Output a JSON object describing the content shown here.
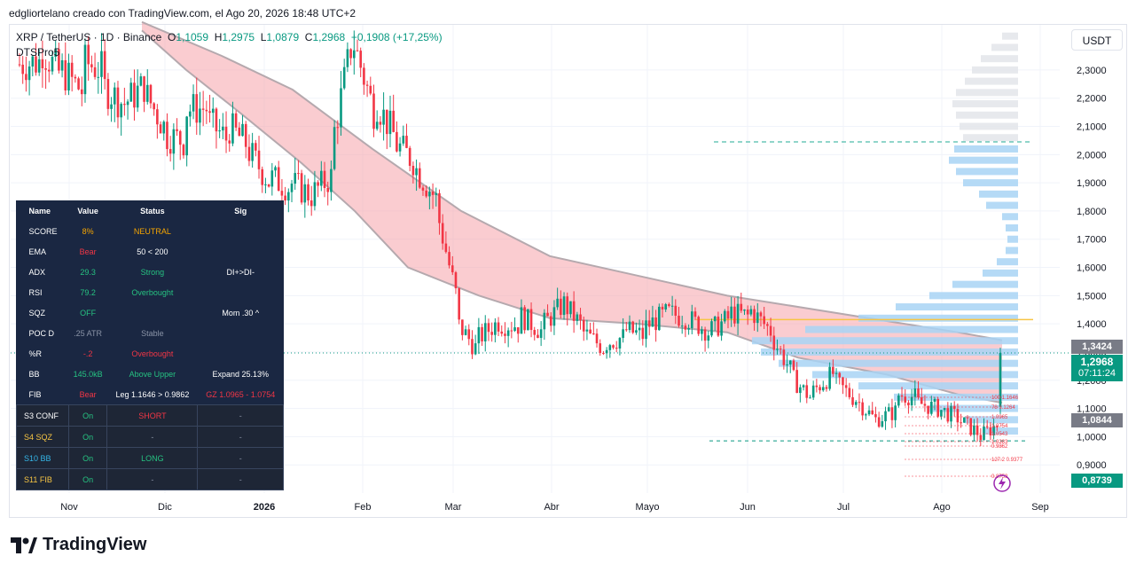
{
  "header": {
    "creator_line": "edgliortelano creado con TradingView.com, el Ago 20, 2026 18:48 UTC+2"
  },
  "symbol": {
    "name": "XRP / TetherUS · 1D · Binance",
    "o_label": "O",
    "o": "1,1059",
    "h_label": "H",
    "h": "1,2975",
    "l_label": "L",
    "l": "1,0879",
    "c_label": "C",
    "c": "1,2968",
    "change": "+0,1908 (+17,25%)",
    "indicator": "DTSPro5"
  },
  "currency_button": "USDT",
  "price_tags": {
    "upper_line": "1,3424",
    "last_price": "1,2968",
    "countdown": "07:11:24",
    "mid_line": "1,0844",
    "low_line": "0,8739"
  },
  "colors": {
    "up": "#089981",
    "down": "#f23645",
    "band_fill": "#f5a3aa",
    "band_edge": "#b5a9ae",
    "vp_blue": "#a8d4f5",
    "vp_grey": "#e3e5ea",
    "poc_line": "#f7c544",
    "table_bg": "#1a2742"
  },
  "chart_data": {
    "type": "candlestick",
    "ylim": [
      0.8,
      2.46
    ],
    "y_ticks": [
      "2,3000",
      "2,2000",
      "2,1000",
      "2,0000",
      "1,9000",
      "1,8000",
      "1,7000",
      "1,6000",
      "1,5000",
      "1,4000",
      "1,3000",
      "1,2000",
      "1,1000",
      "1,0000",
      "0,9000"
    ],
    "x_ticks": [
      "Nov",
      "Dic",
      "2026",
      "Feb",
      "Mar",
      "Abr",
      "Mayo",
      "Jun",
      "Jul",
      "Ago",
      "Sep"
    ],
    "close_path": [
      [
        2.32,
        2.28
      ],
      [
        2.38,
        2.26
      ],
      [
        2.3,
        2.12
      ],
      [
        2.33,
        2.36
      ],
      [
        2.24,
        2.18
      ],
      [
        2.18,
        2.27
      ],
      [
        2.22,
        2.11
      ],
      [
        2.07,
        1.93
      ],
      [
        2.16,
        2.21
      ],
      [
        2.12,
        2.0
      ],
      [
        2.1,
        2.05
      ],
      [
        2.01,
        1.88
      ],
      [
        1.92,
        1.86
      ],
      [
        1.9,
        1.85
      ],
      [
        1.86,
        1.8
      ],
      [
        2.05,
        2.45
      ],
      [
        2.4,
        2.1
      ],
      [
        2.2,
        2.08
      ],
      [
        2.04,
        1.99
      ],
      [
        1.95,
        1.88
      ],
      [
        1.8,
        1.55
      ],
      [
        1.4,
        1.25
      ],
      [
        1.35,
        1.42
      ],
      [
        1.4,
        1.36
      ],
      [
        1.43,
        1.36
      ],
      [
        1.39,
        1.45
      ],
      [
        1.48,
        1.4
      ],
      [
        1.37,
        1.3
      ],
      [
        1.33,
        1.33
      ],
      [
        1.38,
        1.32
      ],
      [
        1.39,
        1.43
      ],
      [
        1.44,
        1.42
      ],
      [
        1.42,
        1.38
      ],
      [
        1.37,
        1.4
      ],
      [
        1.44,
        1.4
      ],
      [
        1.45,
        1.39
      ],
      [
        1.36,
        1.25
      ],
      [
        1.21,
        1.1
      ],
      [
        1.16,
        1.25
      ],
      [
        1.2,
        1.13
      ],
      [
        1.14,
        1.06
      ],
      [
        1.06,
        1.03
      ],
      [
        1.15,
        1.16
      ],
      [
        1.12,
        1.1
      ],
      [
        1.1,
        1.07
      ],
      [
        1.06,
        1.02
      ],
      [
        1.0,
        0.99
      ],
      [
        1.11,
        1.3
      ]
    ],
    "indicator_band": "descending moving-average cloud",
    "fib_levels": [
      {
        "label": "100",
        "value": "1.1646"
      },
      {
        "label": "78",
        "value": "1.1264"
      },
      {
        "label": "",
        "value": "1.0965"
      },
      {
        "label": "",
        "value": "1.0754"
      },
      {
        "label": "",
        "value": "1.0543"
      },
      {
        "label": "",
        "value": "1.0283"
      },
      {
        "label": "",
        "value": "0.9862"
      },
      {
        "label": "127.2",
        "value": "0.9377"
      },
      {
        "label": "",
        "value": "0.8759"
      }
    ]
  },
  "table": {
    "headers": [
      "Name",
      "Value",
      "Status",
      "Sig"
    ],
    "rows": [
      {
        "name": "SCORE",
        "value": "8%",
        "value_color": "#f7a600",
        "status": "NEUTRAL",
        "status_color": "#f7a600",
        "extra": ""
      },
      {
        "name": "EMA",
        "value": "Bear",
        "value_color": "#f23645",
        "status": "50 < 200",
        "status_color": "#ffffff",
        "extra": ""
      },
      {
        "name": "ADX",
        "value": "29.3",
        "value_color": "#26c281",
        "status": "Strong",
        "status_color": "#26c281",
        "extra": "DI+>DI-"
      },
      {
        "name": "RSI",
        "value": "79.2",
        "value_color": "#26c281",
        "status": "Overbought",
        "status_color": "#26c281",
        "extra": ""
      },
      {
        "name": "SQZ",
        "value": "OFF",
        "value_color": "#26c281",
        "status": "",
        "status_color": "#ffffff",
        "extra": "Mom .30 ^"
      },
      {
        "name": "POC D",
        "value": ".25 ATR",
        "value_color": "#8a93a6",
        "status": "Stable",
        "status_color": "#8a93a6",
        "extra": ""
      },
      {
        "name": "%R",
        "value": "-.2",
        "value_color": "#f23645",
        "status": "Overbought",
        "status_color": "#f23645",
        "extra": ""
      },
      {
        "name": "BB",
        "value": "145.0kB",
        "value_color": "#26c281",
        "status": "Above Upper",
        "status_color": "#26c281",
        "extra": "Expand 25.13%"
      },
      {
        "name": "FIB",
        "value": "Bear",
        "value_color": "#f23645",
        "status": "Leg 1.1646 > 0.9862",
        "status_color": "#ffffff",
        "extra": "GZ 1.0965 - 1.0754",
        "extra_color": "#f23645"
      }
    ],
    "strategies": [
      {
        "name": "S3 CONF",
        "name_color": "#ffffff",
        "value": "On",
        "status": "SHORT",
        "status_color": "#f23645",
        "extra": "-"
      },
      {
        "name": "S4 SQZ",
        "name_color": "#f7c544",
        "value": "On",
        "status": "-",
        "status_color": "#8a93a6",
        "extra": "-"
      },
      {
        "name": "S10 BB",
        "name_color": "#35b6e8",
        "value": "On",
        "status": "LONG",
        "status_color": "#26c281",
        "extra": "-"
      },
      {
        "name": "S11 FIB",
        "name_color": "#f7c544",
        "value": "On",
        "status": "-",
        "status_color": "#8a93a6",
        "extra": "-"
      }
    ]
  },
  "footer": {
    "brand": "TradingView"
  }
}
